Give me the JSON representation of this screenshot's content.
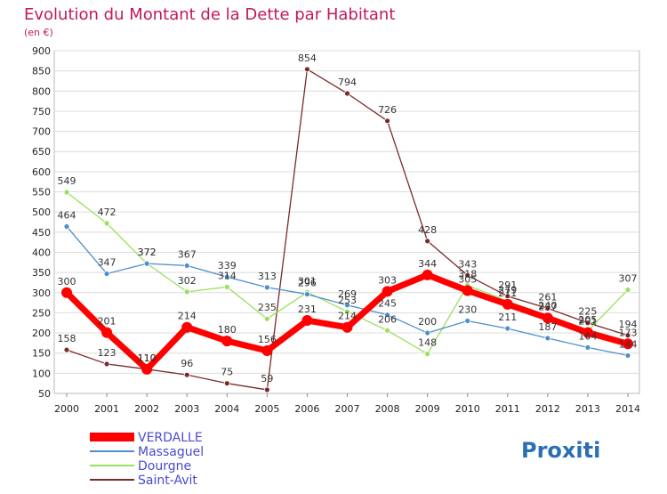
{
  "chart_data": {
    "type": "line",
    "title": "Evolution du Montant de la Dette par Habitant",
    "subtitle": "(en €)",
    "x": [
      "2000",
      "2001",
      "2002",
      "2003",
      "2004",
      "2005",
      "2006",
      "2007",
      "2008",
      "2009",
      "2010",
      "2011",
      "2012",
      "2013",
      "2014"
    ],
    "ylim": [
      50,
      900
    ],
    "yticks": [
      50,
      100,
      150,
      200,
      250,
      300,
      350,
      400,
      450,
      500,
      550,
      600,
      650,
      700,
      750,
      800,
      850,
      900
    ],
    "grid": true,
    "legend_position": "bottom-left",
    "series": [
      {
        "name": "VERDALLE",
        "color": "#ff0000",
        "label_color": "#3333cc",
        "values": [
          300,
          201,
          110,
          214,
          180,
          156,
          231,
          214,
          303,
          344,
          305,
          271,
          237,
          201,
          173
        ],
        "labels": [
          "300",
          "201",
          "110",
          "214",
          "180",
          "156",
          "231",
          "214",
          "303",
          "344",
          "305",
          "271",
          "237",
          "201",
          "173"
        ]
      },
      {
        "name": "Massaguel",
        "color": "#4d8fcc",
        "label_color": "#3d7ab8",
        "values": [
          464,
          347,
          372,
          367,
          339,
          313,
          296,
          269,
          245,
          200,
          230,
          211,
          187,
          164,
          144
        ],
        "labels": [
          "464",
          "347",
          "372",
          "367",
          "339",
          "313",
          "296",
          "269",
          "245",
          "200",
          "230",
          "211",
          "187",
          "164",
          "144"
        ]
      },
      {
        "name": "Dourgne",
        "color": "#99e05c",
        "label_color": "#44a82a",
        "values": [
          549,
          472,
          372,
          302,
          314,
          235,
          301,
          253,
          206,
          148,
          318,
          279,
          240,
          205,
          307
        ],
        "labels": [
          "549",
          "472",
          "372",
          "302",
          "314",
          "235",
          "301",
          "253",
          "206",
          "148",
          "318",
          "279",
          "240",
          "205",
          "307"
        ]
      },
      {
        "name": "Saint-Avit",
        "color": "#7a2a2a",
        "label_color": "#8a3a6a",
        "values": [
          158,
          123,
          110,
          96,
          75,
          59,
          854,
          794,
          726,
          428,
          343,
          291,
          261,
          225,
          194
        ],
        "labels": [
          "158",
          "123",
          "110",
          "96",
          "75",
          "59",
          "854",
          "794",
          "726",
          "428",
          "343",
          "291",
          "261",
          "225",
          "194"
        ]
      }
    ]
  },
  "brand": "Proxiti"
}
